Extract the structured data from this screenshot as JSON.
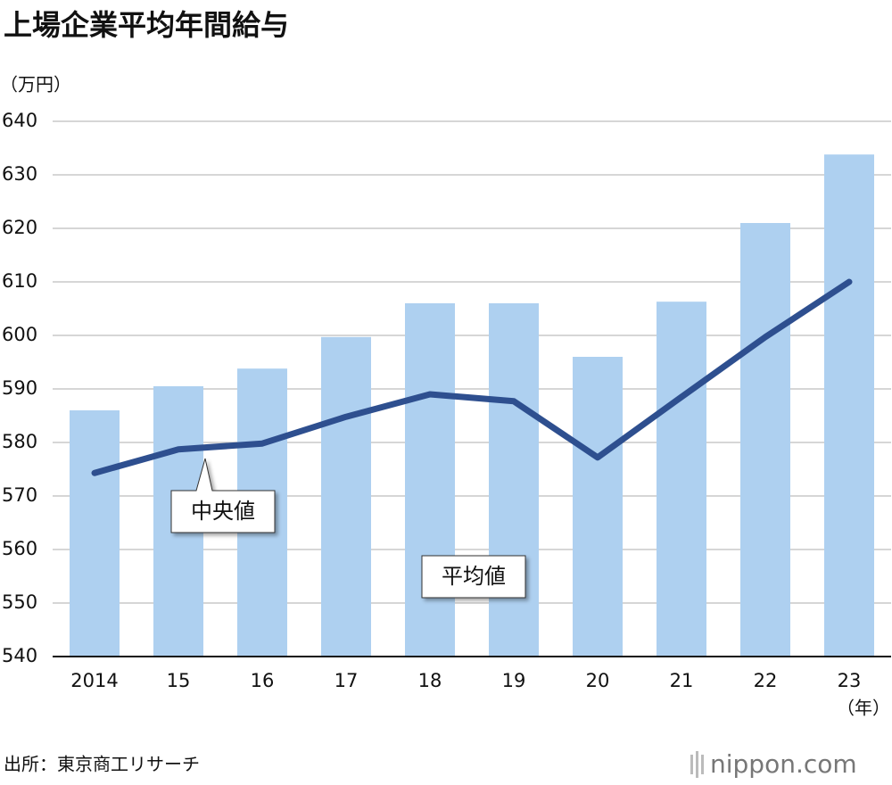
{
  "chart_data": {
    "type": "bar",
    "title": "上場企業平均年間給与",
    "y_label": "（万円）",
    "x_label": "（年）",
    "source": "出所：東京商工リサーチ",
    "logo": "nippon.com",
    "categories": [
      "2014",
      "15",
      "16",
      "17",
      "18",
      "19",
      "20",
      "21",
      "22",
      "23"
    ],
    "series": [
      {
        "name": "平均値",
        "type": "bar",
        "color": "#aed0f0",
        "values": [
          586,
          590.5,
          593.8,
          599.7,
          606,
          606,
          596,
          606.3,
          621,
          633.8
        ]
      },
      {
        "name": "中央値",
        "type": "line",
        "color": "#2e4f8f",
        "values": [
          574.3,
          578.7,
          579.8,
          584.8,
          589,
          587.7,
          577.2,
          588.5,
          599.7,
          610
        ]
      }
    ],
    "ylim": [
      540,
      640
    ],
    "yticks": [
      540,
      550,
      560,
      570,
      580,
      590,
      600,
      610,
      620,
      630,
      640
    ],
    "grid": true
  }
}
